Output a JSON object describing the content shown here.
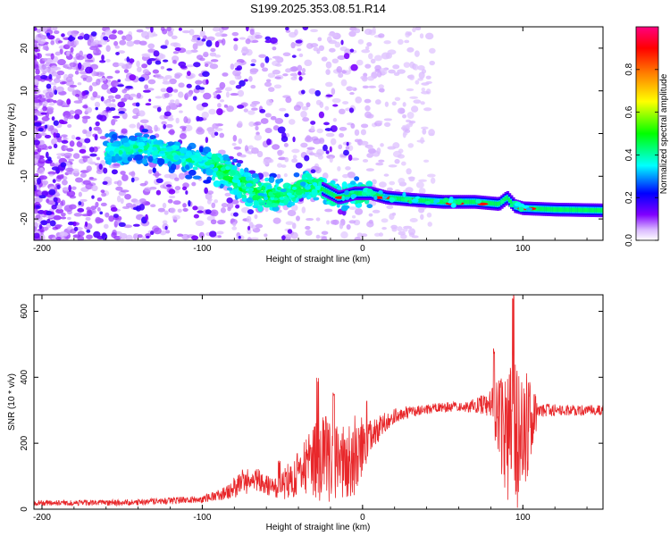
{
  "figure": {
    "title": "S199.2025.353.08.51.R14"
  },
  "chart_data": [
    {
      "type": "heatmap",
      "title": "S199.2025.353.08.51.R14",
      "xlabel": "Height of straight line (km)",
      "ylabel": "Frequency (Hz)",
      "xlim": [
        -205,
        150
      ],
      "ylim": [
        -25,
        25
      ],
      "xticks": [
        -200,
        -100,
        0,
        100
      ],
      "xtick_labels": [
        "-200",
        "-100",
        "0",
        "100"
      ],
      "yticks": [
        -20,
        -10,
        0,
        10,
        20
      ],
      "ytick_labels": [
        "-20",
        "-10",
        "0",
        "10",
        "20"
      ],
      "colorbar": {
        "label": "Normalized spectral amplitude",
        "range": [
          0,
          1
        ],
        "ticks": [
          0,
          0.2,
          0.4,
          0.6,
          0.8
        ],
        "tick_labels": [
          "0.0",
          "0.2",
          "0.4",
          "0.6",
          "0.8"
        ],
        "colors": [
          "#ffffff",
          "#8000ff",
          "#0000ff",
          "#00ffff",
          "#00ff00",
          "#ffff00",
          "#ff8000",
          "#ff0000",
          "#ff0080"
        ]
      },
      "ridge": {
        "x": [
          -150,
          -140,
          -125,
          -110,
          -95,
          -85,
          -75,
          -65,
          -55,
          -45,
          -35,
          -25,
          -15,
          -5,
          5,
          15,
          30,
          50,
          70,
          85,
          90,
          95,
          100,
          120,
          150
        ],
        "y": [
          -4,
          -3,
          -4,
          -6,
          -7,
          -9,
          -12,
          -14,
          -15,
          -14,
          -12,
          -13,
          -15,
          -14,
          -14,
          -15,
          -15.5,
          -16,
          -16,
          -16.5,
          -15,
          -17,
          -17.5,
          -17.8,
          -18
        ]
      }
    },
    {
      "type": "line",
      "xlabel": "Height of straight line (km)",
      "ylabel": "SNR (10 * v/v)",
      "xlim": [
        -205,
        150
      ],
      "ylim": [
        0,
        650
      ],
      "xticks": [
        -200,
        -100,
        0,
        100
      ],
      "xtick_labels": [
        "-200",
        "-100",
        "0",
        "100"
      ],
      "yticks": [
        0,
        200,
        400,
        600
      ],
      "ytick_labels": [
        "0",
        "200",
        "400",
        "600"
      ],
      "series": [
        {
          "name": "SNR",
          "color": "#e8272a",
          "envelope": {
            "x": [
              -205,
              -150,
              -120,
              -100,
              -85,
              -75,
              -65,
              -55,
              -45,
              -35,
              -25,
              -15,
              -5,
              5,
              15,
              25,
              35,
              50,
              65,
              80,
              88,
              96,
              104,
              110,
              150
            ],
            "base": [
              18,
              20,
              25,
              30,
              50,
              80,
              90,
              60,
              90,
              130,
              150,
              140,
              160,
              220,
              270,
              290,
              300,
              310,
              310,
              320,
              250,
              200,
              260,
              300,
              300
            ],
            "noise": [
              8,
              9,
              10,
              12,
              20,
              40,
              40,
              30,
              60,
              90,
              140,
              110,
              130,
              50,
              30,
              20,
              15,
              15,
              15,
              40,
              180,
              260,
              140,
              20,
              15
            ]
          },
          "peaks": [
            {
              "x": -52,
              "y": 160
            },
            {
              "x": -28,
              "y": 400
            },
            {
              "x": -18,
              "y": 355
            },
            {
              "x": 3,
              "y": 335
            },
            {
              "x": 94,
              "y": 650
            },
            {
              "x": 82,
              "y": 490
            }
          ]
        }
      ]
    }
  ]
}
